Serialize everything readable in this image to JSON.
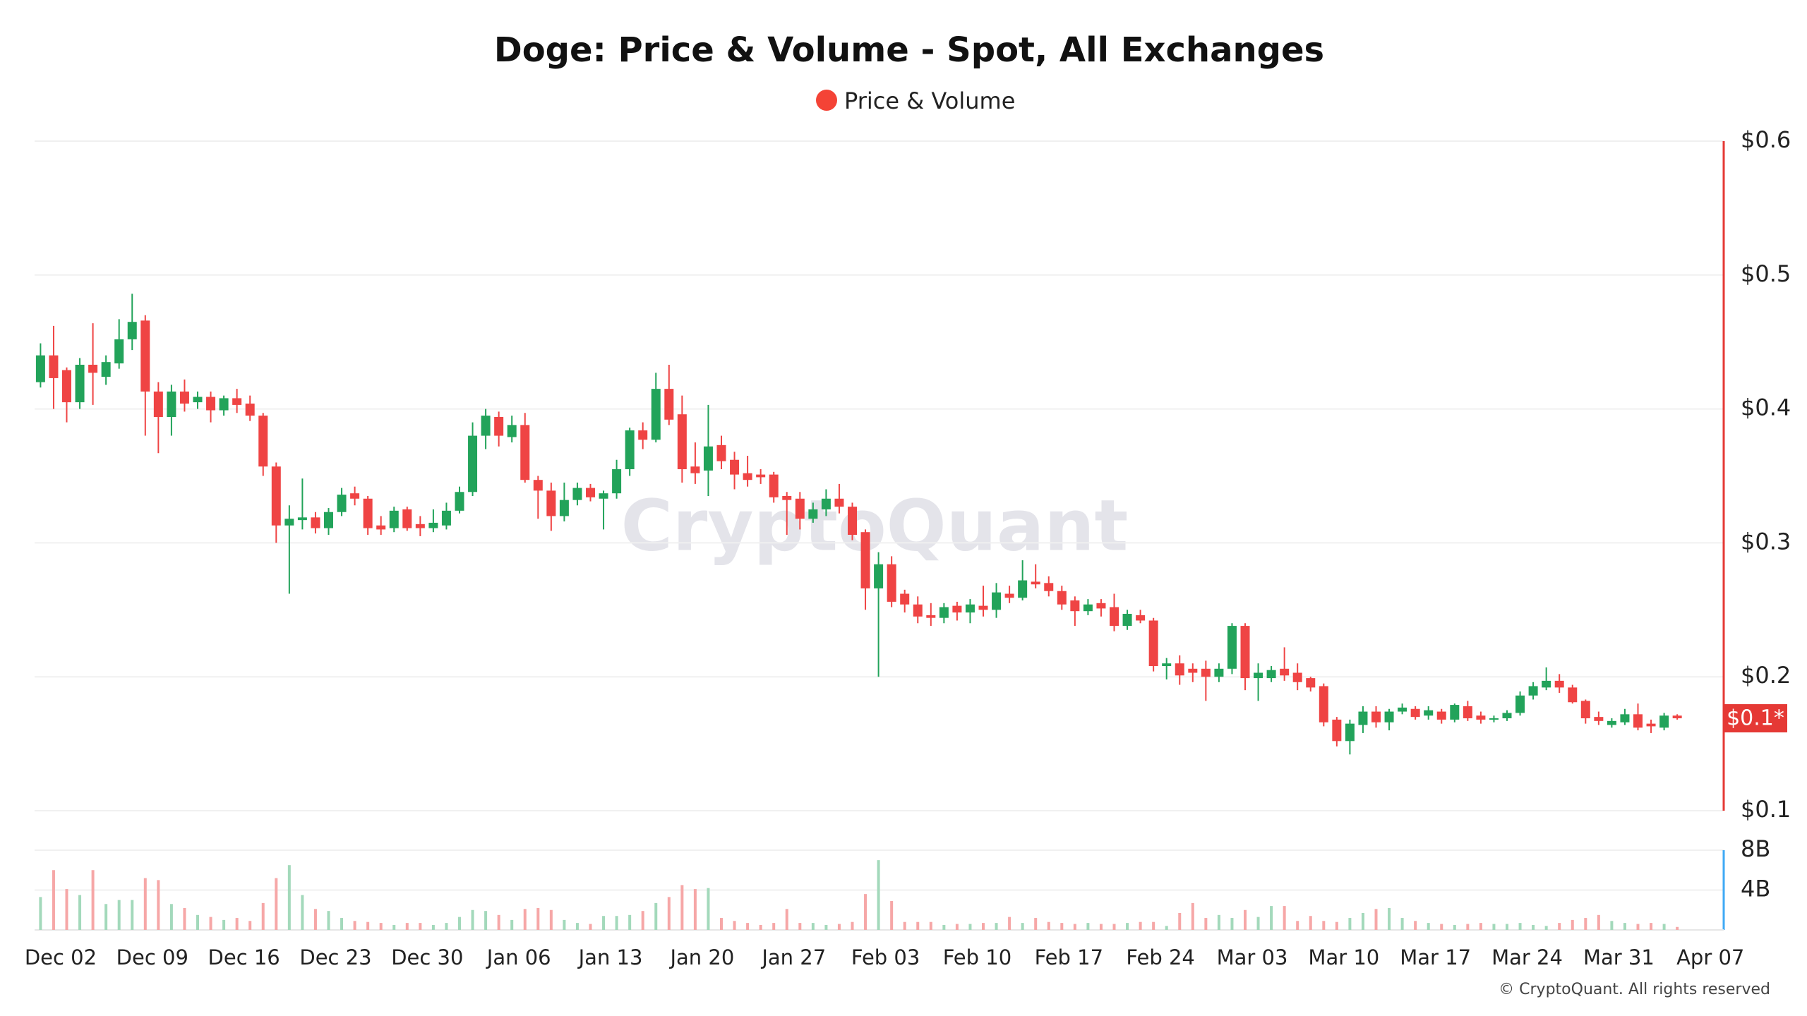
{
  "chart_data": {
    "type": "candlestick",
    "title": "Doge: Price & Volume - Spot, All Exchanges",
    "watermark": "CryptoQuant",
    "footer": "© CryptoQuant. All rights reserved",
    "last_price_label": "$0.1*",
    "categories": [
      "Dec 01",
      "Dec 02",
      "Dec 03",
      "Dec 04",
      "Dec 05",
      "Dec 06",
      "Dec 07",
      "Dec 08",
      "Dec 09",
      "Dec 10",
      "Dec 11",
      "Dec 12",
      "Dec 13",
      "Dec 14",
      "Dec 15",
      "Dec 16",
      "Dec 17",
      "Dec 18",
      "Dec 19",
      "Dec 20",
      "Dec 21",
      "Dec 22",
      "Dec 23",
      "Dec 24",
      "Dec 25",
      "Dec 26",
      "Dec 27",
      "Dec 28",
      "Dec 29",
      "Dec 30",
      "Dec 31",
      "Jan 01",
      "Jan 02",
      "Jan 03",
      "Jan 04",
      "Jan 05",
      "Jan 06",
      "Jan 07",
      "Jan 08",
      "Jan 09",
      "Jan 10",
      "Jan 11",
      "Jan 12",
      "Jan 13",
      "Jan 14",
      "Jan 15",
      "Jan 16",
      "Jan 17",
      "Jan 18",
      "Jan 19",
      "Jan 20",
      "Jan 21",
      "Jan 22",
      "Jan 23",
      "Jan 24",
      "Jan 25",
      "Jan 26",
      "Jan 27",
      "Jan 28",
      "Jan 29",
      "Jan 30",
      "Jan 31",
      "Feb 01",
      "Feb 02",
      "Feb 03",
      "Feb 04",
      "Feb 05",
      "Feb 06",
      "Feb 07",
      "Feb 08",
      "Feb 09",
      "Feb 10",
      "Feb 11",
      "Feb 12",
      "Feb 13",
      "Feb 14",
      "Feb 15",
      "Feb 16",
      "Feb 17",
      "Feb 18",
      "Feb 19",
      "Feb 20",
      "Feb 21",
      "Feb 22",
      "Feb 23",
      "Feb 24",
      "Feb 25",
      "Feb 26",
      "Feb 27",
      "Feb 28",
      "Mar 01",
      "Mar 02",
      "Mar 03",
      "Mar 04",
      "Mar 05",
      "Mar 06",
      "Mar 07",
      "Mar 08",
      "Mar 09",
      "Mar 10",
      "Mar 11",
      "Mar 12",
      "Mar 13",
      "Mar 14",
      "Mar 15",
      "Mar 16",
      "Mar 17",
      "Mar 18",
      "Mar 19",
      "Mar 20",
      "Mar 21",
      "Mar 22",
      "Mar 23",
      "Mar 24",
      "Mar 25",
      "Mar 26",
      "Mar 27",
      "Mar 28",
      "Mar 29",
      "Mar 30",
      "Mar 31",
      "Apr 01",
      "Apr 02",
      "Apr 03",
      "Apr 04",
      "Apr 05",
      "Apr 06",
      "Apr 07"
    ],
    "xticks": [
      "Dec 02",
      "Dec 09",
      "Dec 16",
      "Dec 23",
      "Dec 30",
      "Jan 06",
      "Jan 13",
      "Jan 20",
      "Jan 27",
      "Feb 03",
      "Feb 10",
      "Feb 17",
      "Feb 24",
      "Mar 03",
      "Mar 10",
      "Mar 17",
      "Mar 24",
      "Mar 31",
      "Apr 07"
    ],
    "series": [
      {
        "name": "Price & Volume",
        "color": "#f44336",
        "open": [
          0.42,
          0.44,
          0.429,
          0.405,
          0.433,
          0.424,
          0.434,
          0.452,
          0.466,
          0.413,
          0.394,
          0.413,
          0.405,
          0.409,
          0.399,
          0.408,
          0.404,
          0.395,
          0.357,
          0.313,
          0.317,
          0.319,
          0.311,
          0.323,
          0.337,
          0.333,
          0.313,
          0.311,
          0.325,
          0.314,
          0.311,
          0.313,
          0.324,
          0.338,
          0.38,
          0.394,
          0.379,
          0.388,
          0.347,
          0.339,
          0.32,
          0.332,
          0.341,
          0.333,
          0.337,
          0.355,
          0.384,
          0.377,
          0.415,
          0.396,
          0.357,
          0.354,
          0.373,
          0.362,
          0.352,
          0.351,
          0.351,
          0.335,
          0.333,
          0.318,
          0.325,
          0.333,
          0.327,
          0.308,
          0.266,
          0.284,
          0.262,
          0.254,
          0.246,
          0.244,
          0.253,
          0.248,
          0.253,
          0.25,
          0.262,
          0.259,
          0.271,
          0.27,
          0.264,
          0.257,
          0.249,
          0.255,
          0.252,
          0.238,
          0.246,
          0.242,
          0.208,
          0.21,
          0.206,
          0.206,
          0.2,
          0.206,
          0.238,
          0.199,
          0.199,
          0.206,
          0.203,
          0.199,
          0.193,
          0.168,
          0.152,
          0.164,
          0.174,
          0.166,
          0.174,
          0.176,
          0.171,
          0.174,
          0.168,
          0.178,
          0.171,
          0.168,
          0.169,
          0.173,
          0.186,
          0.192,
          0.197,
          0.192,
          0.182,
          0.17,
          0.164,
          0.166,
          0.172,
          0.165,
          0.162,
          0.171,
          null,
          null
        ],
        "high": [
          0.449,
          0.462,
          0.431,
          0.438,
          0.464,
          0.44,
          0.467,
          0.486,
          0.47,
          0.42,
          0.418,
          0.422,
          0.413,
          0.413,
          0.41,
          0.415,
          0.41,
          0.397,
          0.36,
          0.328,
          0.348,
          0.323,
          0.326,
          0.341,
          0.342,
          0.335,
          0.32,
          0.327,
          0.327,
          0.32,
          0.325,
          0.33,
          0.342,
          0.39,
          0.4,
          0.398,
          0.395,
          0.397,
          0.35,
          0.345,
          0.345,
          0.345,
          0.344,
          0.339,
          0.362,
          0.386,
          0.39,
          0.427,
          0.433,
          0.41,
          0.375,
          0.403,
          0.38,
          0.368,
          0.365,
          0.355,
          0.353,
          0.338,
          0.338,
          0.33,
          0.34,
          0.344,
          0.33,
          0.31,
          0.293,
          0.29,
          0.265,
          0.26,
          0.255,
          0.255,
          0.256,
          0.258,
          0.268,
          0.27,
          0.268,
          0.287,
          0.284,
          0.275,
          0.268,
          0.26,
          0.258,
          0.258,
          0.262,
          0.25,
          0.25,
          0.244,
          0.214,
          0.216,
          0.21,
          0.212,
          0.21,
          0.24,
          0.24,
          0.21,
          0.208,
          0.222,
          0.21,
          0.2,
          0.195,
          0.17,
          0.168,
          0.178,
          0.178,
          0.176,
          0.18,
          0.178,
          0.178,
          0.176,
          0.18,
          0.182,
          0.174,
          0.171,
          0.175,
          0.189,
          0.196,
          0.207,
          0.202,
          0.194,
          0.183,
          0.174,
          0.169,
          0.176,
          0.18,
          0.168,
          0.173,
          0.172,
          null,
          null
        ],
        "low": [
          0.416,
          0.4,
          0.39,
          0.4,
          0.403,
          0.418,
          0.43,
          0.444,
          0.38,
          0.367,
          0.38,
          0.398,
          0.4,
          0.39,
          0.395,
          0.397,
          0.391,
          0.35,
          0.3,
          0.262,
          0.31,
          0.307,
          0.306,
          0.32,
          0.328,
          0.306,
          0.306,
          0.308,
          0.309,
          0.305,
          0.308,
          0.31,
          0.322,
          0.335,
          0.37,
          0.372,
          0.375,
          0.345,
          0.318,
          0.309,
          0.316,
          0.328,
          0.331,
          0.31,
          0.333,
          0.35,
          0.37,
          0.375,
          0.388,
          0.345,
          0.344,
          0.335,
          0.355,
          0.34,
          0.342,
          0.344,
          0.33,
          0.306,
          0.31,
          0.315,
          0.32,
          0.322,
          0.302,
          0.25,
          0.2,
          0.252,
          0.248,
          0.24,
          0.238,
          0.24,
          0.242,
          0.24,
          0.245,
          0.244,
          0.255,
          0.257,
          0.266,
          0.26,
          0.25,
          0.238,
          0.246,
          0.245,
          0.234,
          0.235,
          0.24,
          0.204,
          0.198,
          0.194,
          0.196,
          0.182,
          0.196,
          0.202,
          0.19,
          0.182,
          0.196,
          0.197,
          0.19,
          0.189,
          0.163,
          0.148,
          0.142,
          0.158,
          0.162,
          0.16,
          0.172,
          0.168,
          0.168,
          0.165,
          0.166,
          0.167,
          0.165,
          0.166,
          0.167,
          0.171,
          0.183,
          0.19,
          0.188,
          0.18,
          0.165,
          0.164,
          0.162,
          0.164,
          0.16,
          0.158,
          0.16,
          0.168,
          null,
          null
        ],
        "close": [
          0.44,
          0.423,
          0.405,
          0.433,
          0.427,
          0.435,
          0.452,
          0.465,
          0.413,
          0.394,
          0.413,
          0.404,
          0.409,
          0.399,
          0.408,
          0.403,
          0.395,
          0.357,
          0.313,
          0.318,
          0.319,
          0.311,
          0.323,
          0.336,
          0.333,
          0.311,
          0.31,
          0.324,
          0.311,
          0.311,
          0.315,
          0.324,
          0.338,
          0.38,
          0.395,
          0.38,
          0.388,
          0.347,
          0.339,
          0.32,
          0.332,
          0.341,
          0.334,
          0.337,
          0.355,
          0.384,
          0.377,
          0.415,
          0.392,
          0.355,
          0.352,
          0.372,
          0.361,
          0.351,
          0.347,
          0.349,
          0.334,
          0.332,
          0.318,
          0.325,
          0.333,
          0.327,
          0.306,
          0.266,
          0.284,
          0.256,
          0.254,
          0.245,
          0.244,
          0.252,
          0.248,
          0.254,
          0.25,
          0.263,
          0.259,
          0.272,
          0.269,
          0.264,
          0.254,
          0.249,
          0.254,
          0.251,
          0.238,
          0.247,
          0.242,
          0.208,
          0.21,
          0.201,
          0.203,
          0.2,
          0.206,
          0.238,
          0.199,
          0.203,
          0.205,
          0.201,
          0.196,
          0.192,
          0.166,
          0.152,
          0.165,
          0.174,
          0.166,
          0.174,
          0.177,
          0.17,
          0.175,
          0.168,
          0.179,
          0.169,
          0.168,
          0.169,
          0.173,
          0.186,
          0.193,
          0.197,
          0.192,
          0.181,
          0.169,
          0.167,
          0.167,
          0.172,
          0.162,
          0.163,
          0.171,
          0.169,
          null,
          null
        ],
        "volume": [
          3300000000.0,
          6000000000.0,
          4100000000.0,
          3500000000.0,
          6000000000.0,
          2600000000.0,
          3000000000.0,
          3000000000.0,
          5200000000.0,
          5000000000.0,
          2600000000.0,
          2200000000.0,
          1500000000.0,
          1300000000.0,
          1000000000.0,
          1200000000.0,
          900000000.0,
          2700000000.0,
          5200000000.0,
          6500000000.0,
          3500000000.0,
          2100000000.0,
          1900000000.0,
          1200000000.0,
          900000000.0,
          800000000.0,
          700000000.0,
          500000000.0,
          700000000.0,
          700000000.0,
          500000000.0,
          700000000.0,
          1300000000.0,
          2000000000.0,
          1900000000.0,
          1500000000.0,
          1000000000.0,
          2100000000.0,
          2200000000.0,
          2000000000.0,
          1000000000.0,
          700000000.0,
          600000000.0,
          1400000000.0,
          1400000000.0,
          1500000000.0,
          1900000000.0,
          2700000000.0,
          3300000000.0,
          4500000000.0,
          4100000000.0,
          4200000000.0,
          1200000000.0,
          900000000.0,
          700000000.0,
          500000000.0,
          700000000.0,
          2100000000.0,
          700000000.0,
          700000000.0,
          500000000.0,
          600000000.0,
          800000000.0,
          3600000000.0,
          7000000000.0,
          2900000000.0,
          800000000.0,
          800000000.0,
          800000000.0,
          500000000.0,
          600000000.0,
          600000000.0,
          700000000.0,
          700000000.0,
          1300000000.0,
          700000000.0,
          1200000000.0,
          800000000.0,
          700000000.0,
          600000000.0,
          700000000.0,
          600000000.0,
          600000000.0,
          700000000.0,
          800000000.0,
          800000000.0,
          400000000.0,
          1700000000.0,
          2700000000.0,
          1200000000.0,
          1500000000.0,
          1200000000.0,
          2000000000.0,
          1300000000.0,
          2400000000.0,
          2400000000.0,
          900000000.0,
          1400000000.0,
          900000000.0,
          800000000.0,
          1200000000.0,
          1700000000.0,
          2100000000.0,
          2200000000.0,
          1200000000.0,
          900000000.0,
          700000000.0,
          600000000.0,
          500000000.0,
          600000000.0,
          700000000.0,
          600000000.0,
          600000000.0,
          700000000.0,
          500000000.0,
          400000000.0,
          700000000.0,
          1000000000.0,
          1200000000.0,
          1500000000.0,
          900000000.0,
          700000000.0,
          600000000.0,
          700000000.0,
          600000000.0,
          300000000.0,
          null,
          null
        ]
      }
    ],
    "up_color": "#22a35a",
    "down_color": "#ef4444",
    "volume_up_color": "#a3d9bb",
    "volume_down_color": "#f6a7a7",
    "price_axis_color": "#e53935",
    "volume_axis_color": "#3fa9f5",
    "ylim": [
      0.1,
      0.6
    ],
    "yticks": [
      {
        "value": 0.1,
        "label": "$0.1"
      },
      {
        "value": 0.2,
        "label": "$0.2"
      },
      {
        "value": 0.3,
        "label": "$0.3"
      },
      {
        "value": 0.4,
        "label": "$0.4"
      },
      {
        "value": 0.5,
        "label": "$0.5"
      },
      {
        "value": 0.6,
        "label": "$0.6"
      }
    ],
    "y2lim": [
      0,
      8000000000
    ],
    "y2ticks": [
      {
        "value": 4000000000,
        "label": "4B"
      },
      {
        "value": 8000000000,
        "label": "8B"
      }
    ],
    "grid": true
  }
}
